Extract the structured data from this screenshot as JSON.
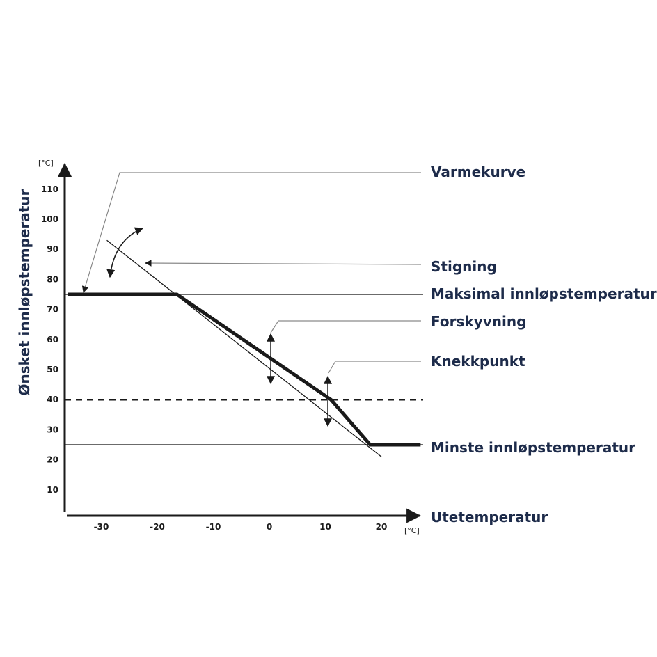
{
  "chart_data": {
    "type": "line",
    "ylabel": "Ønsket innløpstemperatur",
    "yunit": "[°C]",
    "xlabel": "Utetemperatur",
    "xunit": "[°C]",
    "x_ticks": [
      "-30",
      "-20",
      "-10",
      "0",
      "10",
      "20"
    ],
    "y_ticks": [
      "10",
      "20",
      "30",
      "40",
      "50",
      "60",
      "70",
      "80",
      "90",
      "100",
      "110"
    ],
    "xlim": [
      -37,
      27
    ],
    "ylim": [
      0,
      120
    ],
    "series": [
      {
        "x": [
          -36,
          -16.5,
          11,
          18,
          27
        ],
        "y": [
          75,
          75,
          40,
          25,
          25
        ]
      }
    ],
    "slope_line": {
      "x": [
        -29,
        20
      ],
      "y": [
        93,
        21
      ]
    },
    "reference_lines": [
      {
        "y": 75,
        "style": "solid"
      },
      {
        "y": 40,
        "style": "dashed"
      },
      {
        "y": 25,
        "style": "solid"
      }
    ]
  },
  "annotations": [
    {
      "id": "varmekurve",
      "label": "Varmekurve"
    },
    {
      "id": "stigning",
      "label": "Stigning"
    },
    {
      "id": "maks",
      "label": "Maksimal innløpstemperatur"
    },
    {
      "id": "forskyvning",
      "label": "Forskyvning"
    },
    {
      "id": "knekkpunkt",
      "label": "Knekkpunkt"
    },
    {
      "id": "minste",
      "label": "Minste innløpstemperatur"
    }
  ],
  "colors": {
    "label_text": "#1d2b4a",
    "axis": "#1a1a1a",
    "curve": "#1a1a1a",
    "reference": "#6b6b6b",
    "leader": "#8a8a8a"
  }
}
